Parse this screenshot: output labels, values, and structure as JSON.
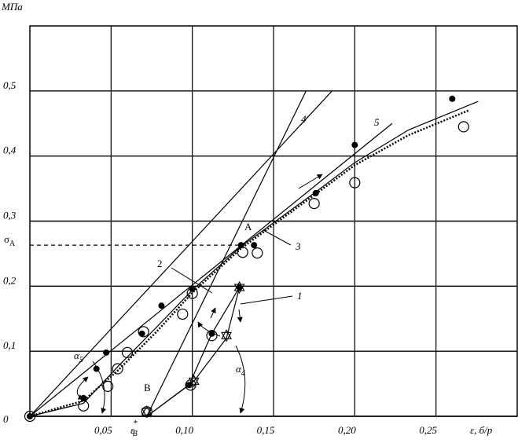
{
  "chart_data": {
    "type": "scatter",
    "y_label": "МПа",
    "x_label": "ε, б/р",
    "xlim": [
      0,
      0.3
    ],
    "ylim": [
      0,
      0.6
    ],
    "xticks": [
      {
        "value": 0.05,
        "label": "0,05"
      },
      {
        "value": 0.1,
        "label": "0,10"
      },
      {
        "value": 0.15,
        "label": "0,15"
      },
      {
        "value": 0.2,
        "label": "0,20"
      },
      {
        "value": 0.25,
        "label": "0,25"
      }
    ],
    "yticks": [
      0,
      {
        "value": 0.1,
        "label": "0,1"
      },
      {
        "value": 0.2,
        "label": "0,2"
      },
      {
        "value": 0.3,
        "label": "0,3"
      },
      {
        "value": 0.4,
        "label": "0,4"
      },
      {
        "value": 0.5,
        "label": "0,5"
      }
    ],
    "grid": true,
    "series": [
      {
        "style": "solid",
        "color": "#000",
        "x": [
          0,
          0.033,
          0.054,
          0.078,
          0.1,
          0.13,
          0.175,
          0.2,
          0.233,
          0.276
        ],
        "y": [
          0,
          0.02,
          0.076,
          0.137,
          0.194,
          0.261,
          0.343,
          0.39,
          0.44,
          0.484
        ]
      },
      {
        "style": "dotted",
        "color": "#000",
        "x": [
          0,
          0.033,
          0.054,
          0.078,
          0.1,
          0.13,
          0.175,
          0.2,
          0.233,
          0.27
        ],
        "y": [
          0,
          0.024,
          0.07,
          0.13,
          0.19,
          0.258,
          0.34,
          0.386,
          0.432,
          0.47
        ]
      },
      {
        "style": "solid",
        "color": "#000",
        "x": [
          0,
          0.186
        ],
        "y": [
          0,
          0.5
        ]
      },
      {
        "style": "solid",
        "color": "#000",
        "x": [
          0.072,
          0.17
        ],
        "y": [
          0,
          0.5
        ]
      },
      {
        "style": "solid",
        "color": "#000",
        "x": [
          0,
          0.223
        ],
        "y": [
          0,
          0.45
        ]
      },
      {
        "style": "solid",
        "color": "#000",
        "x": [
          0.072,
          0.098,
          0.112,
          0.129
        ],
        "y": [
          0,
          0.048,
          0.127,
          0.198
        ]
      },
      {
        "style": "solid",
        "color": "#000",
        "x": [
          0.072,
          0.101,
          0.121,
          0.129
        ],
        "y": [
          0,
          0.054,
          0.12,
          0.198
        ]
      },
      {
        "style": "dashed",
        "color": "#000",
        "x": [
          0,
          0.13
        ],
        "y": [
          0.263,
          0.263
        ]
      },
      {
        "marker": "dot",
        "color": "#000",
        "x": [
          0,
          0.033,
          0.041,
          0.047,
          0.069,
          0.081,
          0.1,
          0.098,
          0.112,
          0.129,
          0.13,
          0.138,
          0.176,
          0.2,
          0.26
        ],
        "y": [
          0,
          0.028,
          0.073,
          0.098,
          0.127,
          0.17,
          0.196,
          0.048,
          0.127,
          0.198,
          0.263,
          0.263,
          0.343,
          0.417,
          0.488
        ]
      },
      {
        "marker": "circle",
        "color": "#000",
        "x": [
          0,
          0.033,
          0.048,
          0.054,
          0.06,
          0.07,
          0.094,
          0.1,
          0.099,
          0.112,
          0.131,
          0.14,
          0.175,
          0.2,
          0.267,
          0.072
        ],
        "y": [
          0,
          0.016,
          0.046,
          0.073,
          0.098,
          0.13,
          0.157,
          0.189,
          0.048,
          0.124,
          0.252,
          0.251,
          0.327,
          0.359,
          0.445,
          0.007
        ]
      },
      {
        "marker": "star",
        "color": "#000",
        "x": [
          0.072,
          0.101,
          0.121,
          0.129
        ],
        "y": [
          0.007,
          0.054,
          0.124,
          0.198
        ]
      }
    ],
    "annotations": [
      {
        "text": "1"
      },
      {
        "text": "2"
      },
      {
        "text": "3"
      },
      {
        "text": "4"
      },
      {
        "text": "5"
      },
      {
        "text": "A"
      },
      {
        "text": "B"
      },
      {
        "text": "σ",
        "sub": "A"
      },
      {
        "text": "ε",
        "sup": "*",
        "sub": "B"
      },
      {
        "text": "α",
        "sub": "5"
      },
      {
        "text": "α",
        "sub": "4"
      }
    ]
  }
}
